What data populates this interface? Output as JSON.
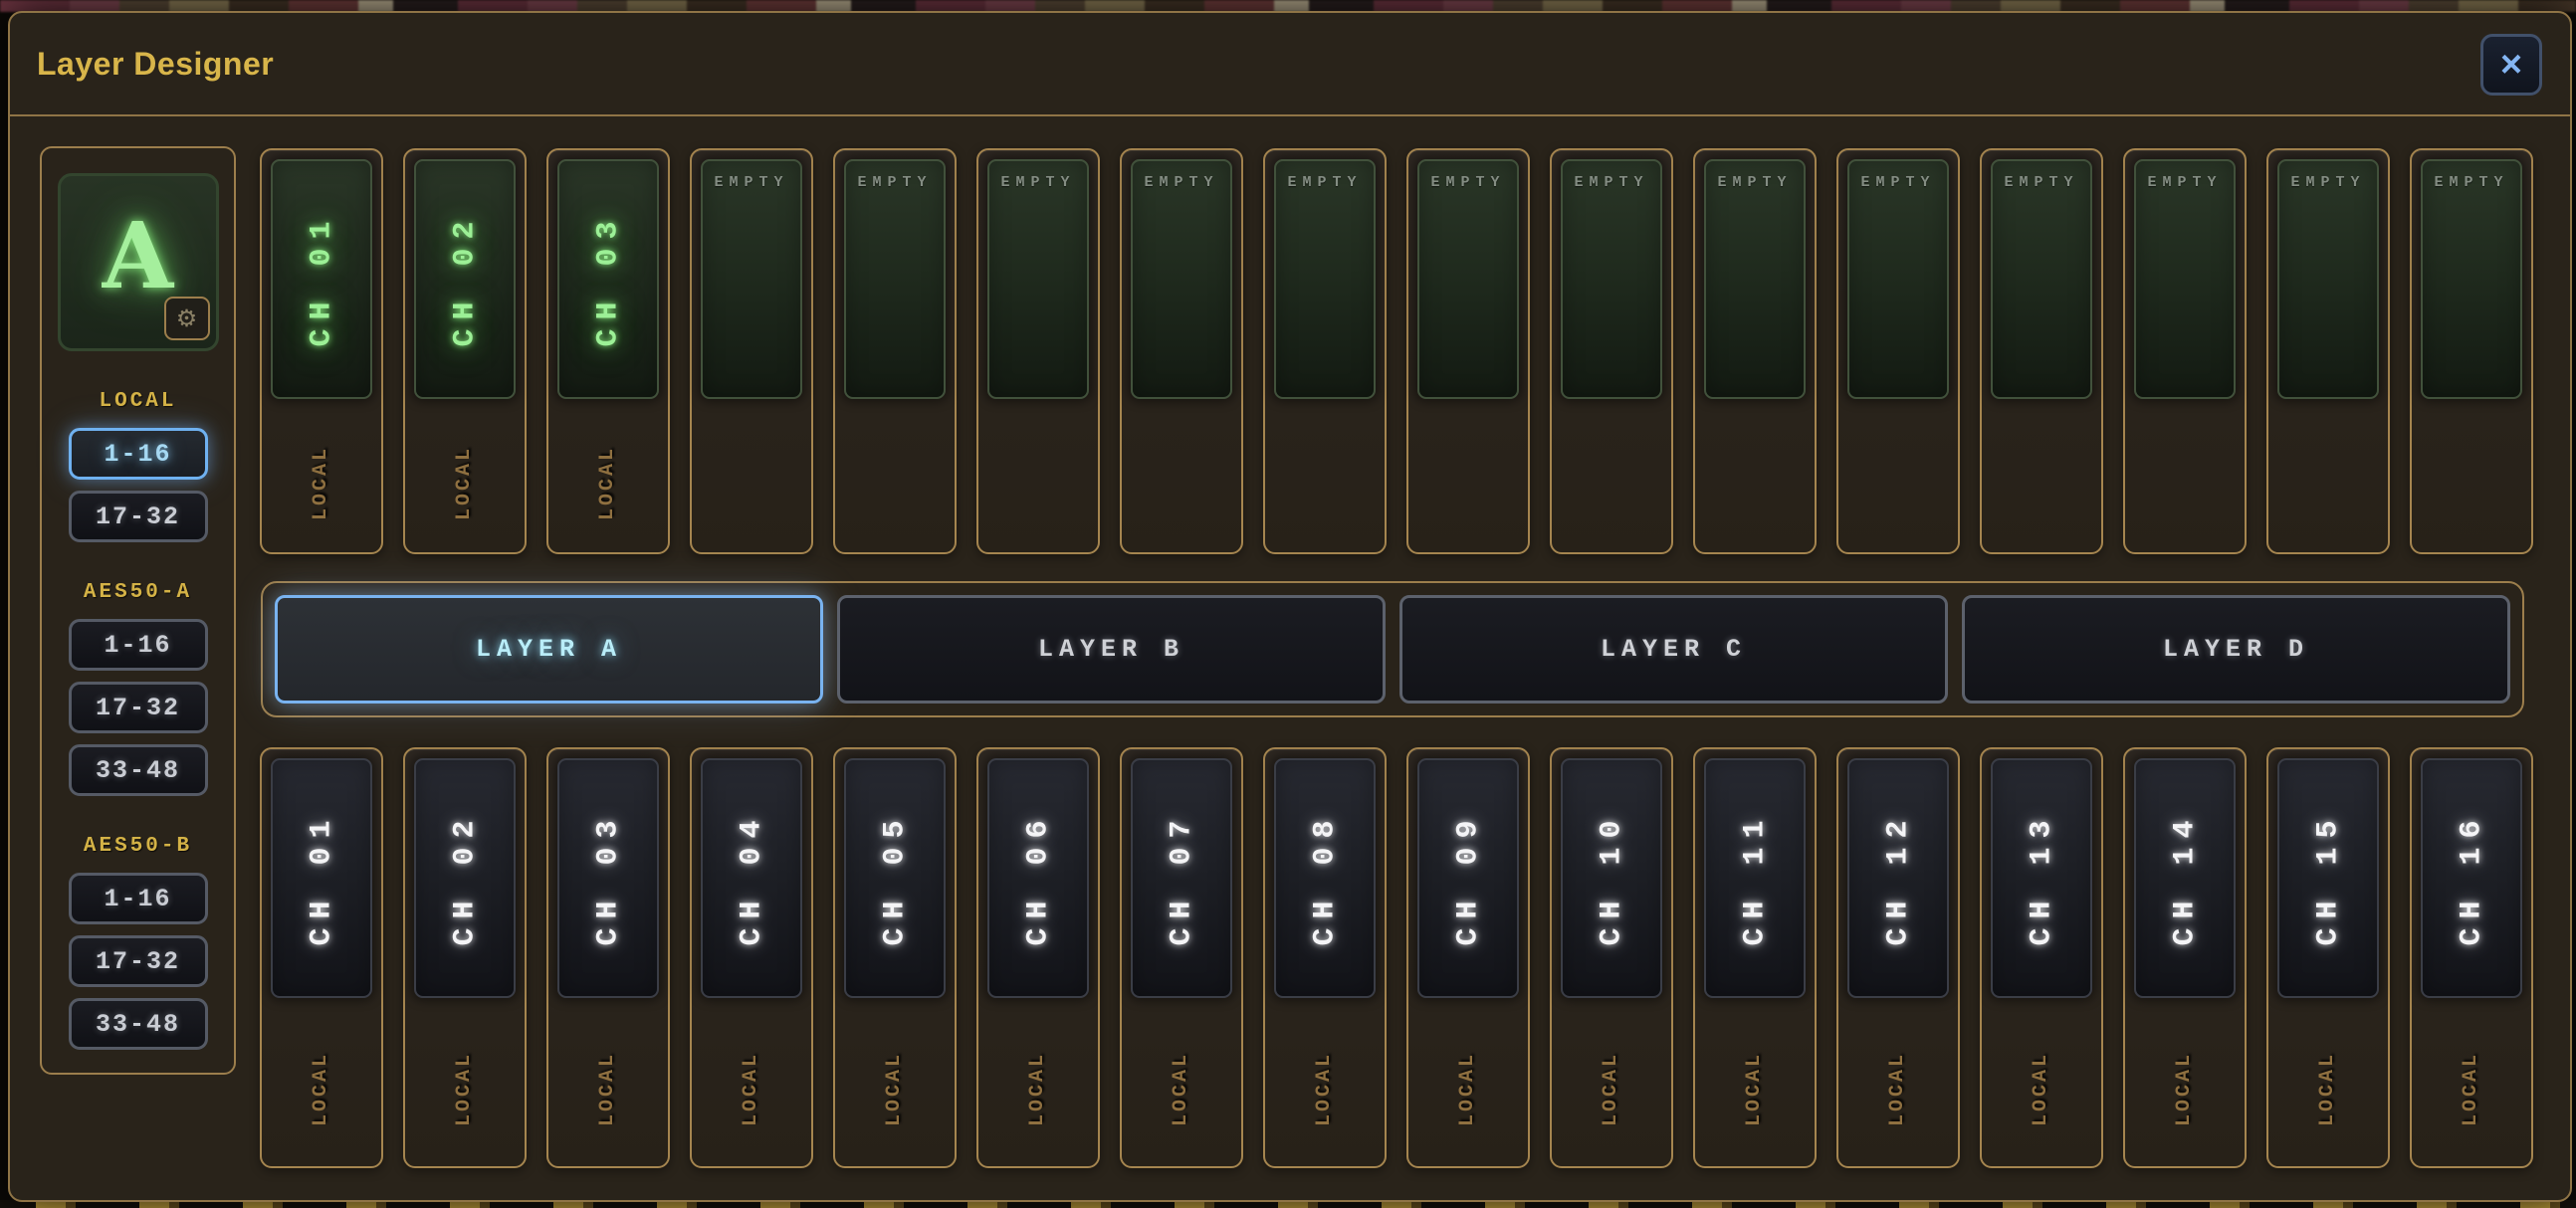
{
  "window": {
    "title": "Layer Designer",
    "close_icon": "×"
  },
  "sidebar": {
    "layer_tile": {
      "letter": "A",
      "gear_icon": "⚙"
    },
    "groups": [
      {
        "label": "LOCAL",
        "buttons": [
          {
            "label": "1-16",
            "selected": true
          },
          {
            "label": "17-32",
            "selected": false
          }
        ]
      },
      {
        "label": "AES50-A",
        "buttons": [
          {
            "label": "1-16",
            "selected": false
          },
          {
            "label": "17-32",
            "selected": false
          },
          {
            "label": "33-48",
            "selected": false
          }
        ]
      },
      {
        "label": "AES50-B",
        "buttons": [
          {
            "label": "1-16",
            "selected": false
          },
          {
            "label": "17-32",
            "selected": false
          },
          {
            "label": "33-48",
            "selected": false
          }
        ]
      }
    ]
  },
  "source_row": {
    "strips": [
      {
        "state": "assigned",
        "channel": "CH 01",
        "source": "LOCAL"
      },
      {
        "state": "assigned",
        "channel": "CH 02",
        "source": "LOCAL"
      },
      {
        "state": "assigned",
        "channel": "CH 03",
        "source": "LOCAL"
      },
      {
        "state": "empty",
        "placeholder": "EMPTY"
      },
      {
        "state": "empty",
        "placeholder": "EMPTY"
      },
      {
        "state": "empty",
        "placeholder": "EMPTY"
      },
      {
        "state": "empty",
        "placeholder": "EMPTY"
      },
      {
        "state": "empty",
        "placeholder": "EMPTY"
      },
      {
        "state": "empty",
        "placeholder": "EMPTY"
      },
      {
        "state": "empty",
        "placeholder": "EMPTY"
      },
      {
        "state": "empty",
        "placeholder": "EMPTY"
      },
      {
        "state": "empty",
        "placeholder": "EMPTY"
      },
      {
        "state": "empty",
        "placeholder": "EMPTY"
      },
      {
        "state": "empty",
        "placeholder": "EMPTY"
      },
      {
        "state": "empty",
        "placeholder": "EMPTY"
      },
      {
        "state": "empty",
        "placeholder": "EMPTY"
      }
    ]
  },
  "layer_tabs": [
    {
      "label": "LAYER A",
      "selected": true
    },
    {
      "label": "LAYER B",
      "selected": false
    },
    {
      "label": "LAYER C",
      "selected": false
    },
    {
      "label": "LAYER D",
      "selected": false
    }
  ],
  "channel_row": {
    "strips": [
      {
        "channel": "CH 01",
        "source": "LOCAL"
      },
      {
        "channel": "CH 02",
        "source": "LOCAL"
      },
      {
        "channel": "CH 03",
        "source": "LOCAL"
      },
      {
        "channel": "CH 04",
        "source": "LOCAL"
      },
      {
        "channel": "CH 05",
        "source": "LOCAL"
      },
      {
        "channel": "CH 06",
        "source": "LOCAL"
      },
      {
        "channel": "CH 07",
        "source": "LOCAL"
      },
      {
        "channel": "CH 08",
        "source": "LOCAL"
      },
      {
        "channel": "CH 09",
        "source": "LOCAL"
      },
      {
        "channel": "CH 10",
        "source": "LOCAL"
      },
      {
        "channel": "CH 11",
        "source": "LOCAL"
      },
      {
        "channel": "CH 12",
        "source": "LOCAL"
      },
      {
        "channel": "CH 13",
        "source": "LOCAL"
      },
      {
        "channel": "CH 14",
        "source": "LOCAL"
      },
      {
        "channel": "CH 15",
        "source": "LOCAL"
      },
      {
        "channel": "CH 16",
        "source": "LOCAL"
      }
    ]
  },
  "colors": {
    "accent_gold": "#d8b54a",
    "border_tan": "#a5854f",
    "selected_blue_border": "#79b3f0",
    "selected_blue_text": "#b9edf8",
    "green_glow_text": "#9cf096",
    "green_screen": "#202b1e",
    "dark_screen": "#1e2026",
    "empty_text": "#848d83",
    "white_glow_text": "#f4f4f6",
    "source_label_tan": "#8f7040",
    "dialog_bg": "#29231a"
  }
}
